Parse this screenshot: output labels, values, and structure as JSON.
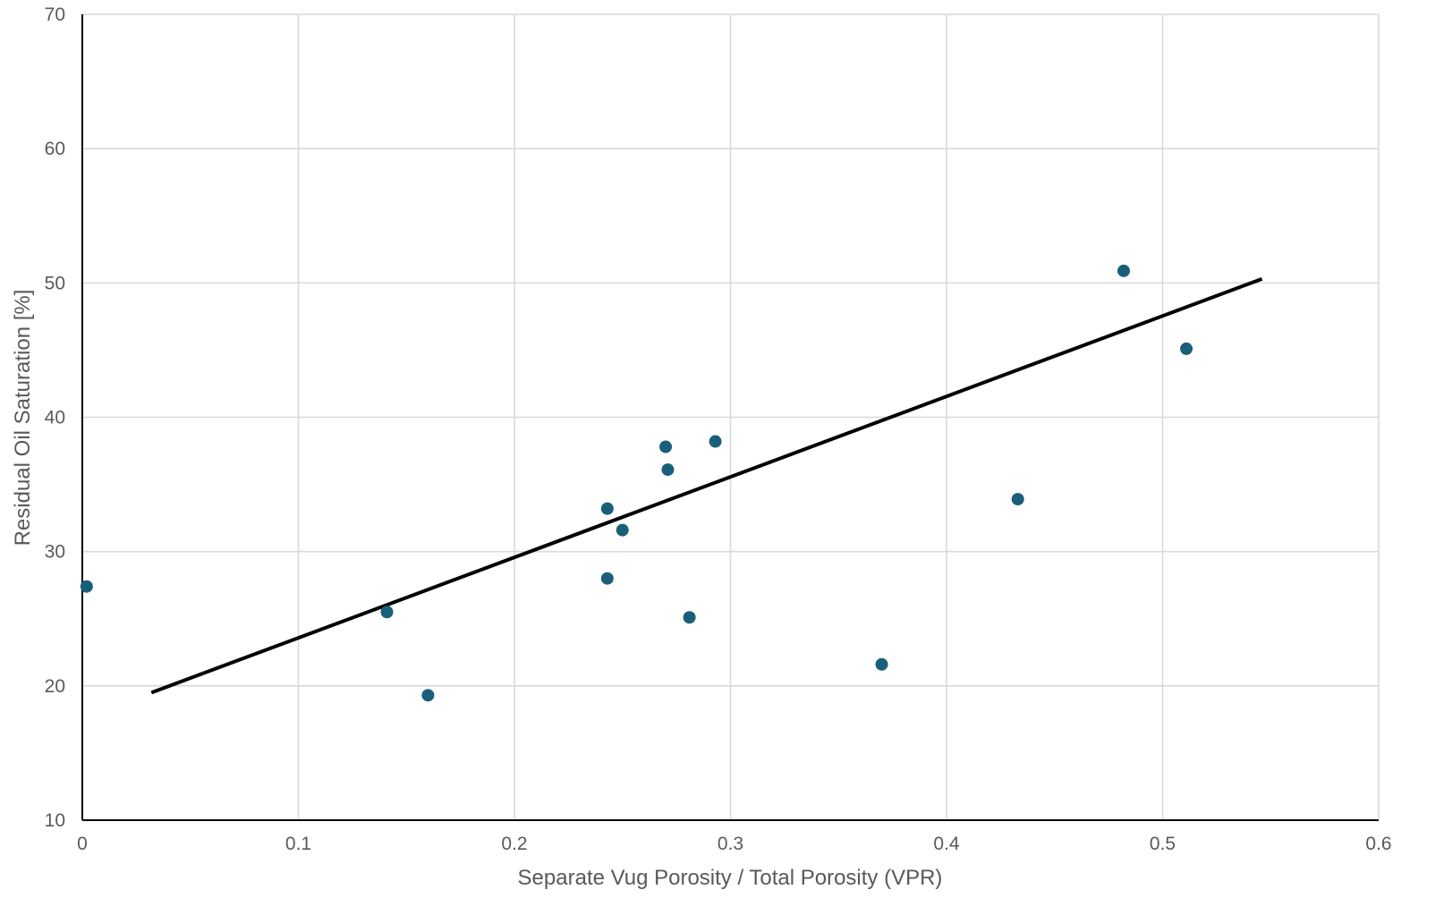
{
  "chart_data": {
    "type": "scatter",
    "title": "",
    "xlabel": "Separate Vug Porosity / Total Porosity (VPR)",
    "ylabel": "Residual Oil Saturation [%]",
    "xlim": [
      0,
      0.6
    ],
    "ylim": [
      10,
      70
    ],
    "x_ticks": [
      0,
      0.1,
      0.2,
      0.3,
      0.4,
      0.5,
      0.6
    ],
    "x_tick_labels": [
      "0",
      "0.1",
      "0.2",
      "0.3",
      "0.4",
      "0.5",
      "0.6"
    ],
    "y_ticks": [
      10,
      20,
      30,
      40,
      50,
      60,
      70
    ],
    "y_tick_labels": [
      "10",
      "20",
      "30",
      "40",
      "50",
      "60",
      "70"
    ],
    "grid": true,
    "legend": "none",
    "series": [
      {
        "color": "#1a5f7a",
        "points": [
          {
            "x": 0.002,
            "y": 27.4
          },
          {
            "x": 0.141,
            "y": 25.5
          },
          {
            "x": 0.16,
            "y": 19.3
          },
          {
            "x": 0.243,
            "y": 33.2
          },
          {
            "x": 0.243,
            "y": 28.0
          },
          {
            "x": 0.25,
            "y": 31.6
          },
          {
            "x": 0.27,
            "y": 37.8
          },
          {
            "x": 0.271,
            "y": 36.1
          },
          {
            "x": 0.281,
            "y": 25.1
          },
          {
            "x": 0.293,
            "y": 38.2
          },
          {
            "x": 0.37,
            "y": 21.6
          },
          {
            "x": 0.433,
            "y": 33.9
          },
          {
            "x": 0.482,
            "y": 50.9
          },
          {
            "x": 0.511,
            "y": 45.1
          }
        ]
      }
    ],
    "trendline": {
      "color": "#000000",
      "from": {
        "x": 0.032,
        "y": 19.5
      },
      "to": {
        "x": 0.546,
        "y": 50.3
      }
    }
  }
}
